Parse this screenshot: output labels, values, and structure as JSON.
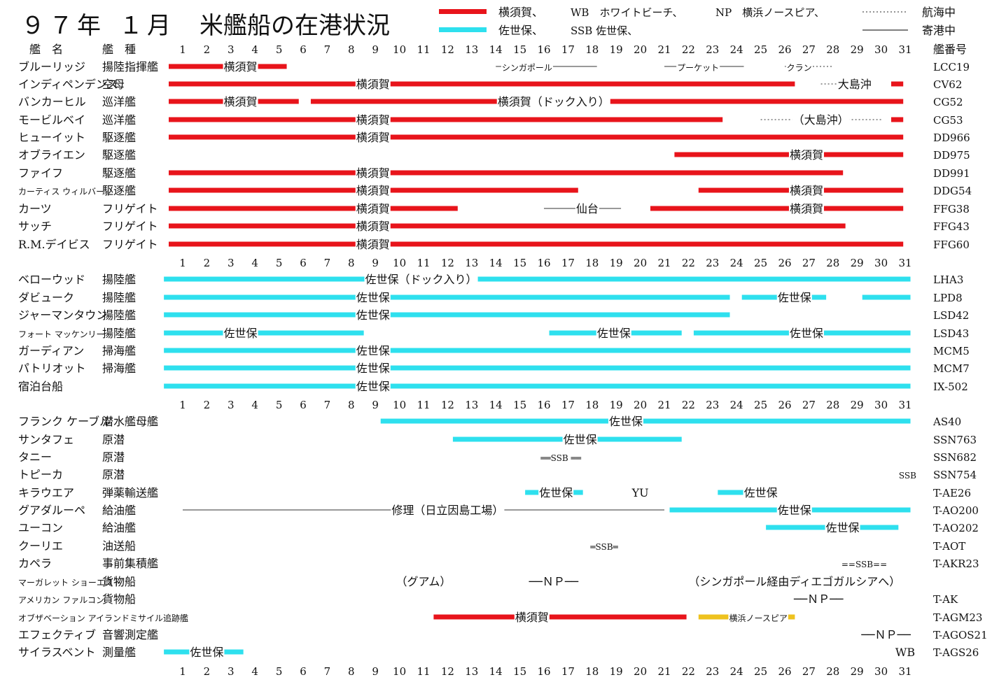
{
  "title": {
    "year": "９７年",
    "month": "１月",
    "main": "米艦船の在港状況"
  },
  "legend": {
    "red_label": "横須賀、",
    "cyan_label": "佐世保、",
    "wb": "WB　ホワイトビーチ、",
    "ssb": "SSB 佐世保、",
    "np": "NP　横浜ノースピア、",
    "dotted_label": "航海中",
    "solid_label": "寄港中"
  },
  "colors": {
    "yokosuka": "#e8141b",
    "sasebo": "#2ee0ee",
    "north_pier": "#eec21e",
    "line": "#333333"
  },
  "header": {
    "name_col": "艦　名",
    "type_col": "艦　種",
    "hull_col": "艦番号"
  },
  "days": [
    "1",
    "2",
    "3",
    "4",
    "5",
    "6",
    "7",
    "8",
    "9",
    "10",
    "11",
    "12",
    "13",
    "14",
    "15",
    "16",
    "17",
    "18",
    "19",
    "20",
    "21",
    "22",
    "23",
    "24",
    "25",
    "26",
    "27",
    "28",
    "29",
    "30",
    "31"
  ],
  "rows": [
    {
      "name": "ブルーリッジ",
      "type": "揚陸指揮艦",
      "hull": "LCC19",
      "bars": [
        {
          "c": "yokosuka",
          "from": 1,
          "to": 5.9
        }
      ],
      "lines": [
        {
          "from": 14,
          "to": 18.2,
          "style": "solid"
        },
        {
          "from": 21,
          "to": 24.3,
          "style": "solid"
        },
        {
          "from": 26,
          "to": 28,
          "style": "dotted"
        }
      ],
      "labels": [
        {
          "text": "横須賀",
          "x": 3.4
        },
        {
          "text": "シンガポール",
          "x": 15.3,
          "small": true
        },
        {
          "text": "プーケット",
          "x": 22.4,
          "small": true
        },
        {
          "text": "クラン",
          "x": 26.6,
          "small": true
        }
      ]
    },
    {
      "name": "インディペンデンス",
      "type": "空母",
      "hull": "CV62",
      "bars": [
        {
          "c": "yokosuka",
          "from": 1,
          "to": 27
        },
        {
          "c": "yokosuka",
          "from": 31,
          "to": 31.5
        }
      ],
      "lines": [
        {
          "from": 27.5,
          "to": 29.5,
          "style": "dotted"
        }
      ],
      "labels": [
        {
          "text": "横須賀",
          "x": 8.9
        },
        {
          "text": "大島沖",
          "x": 28.9
        }
      ]
    },
    {
      "name": "バンカーヒル",
      "type": "巡洋艦",
      "hull": "CG52",
      "bars": [
        {
          "c": "yokosuka",
          "from": 1,
          "to": 6.4
        },
        {
          "c": "yokosuka",
          "from": 6.9,
          "to": 31.5
        }
      ],
      "lines": [],
      "labels": [
        {
          "text": "横須賀",
          "x": 3.4
        },
        {
          "text": "横須賀（ドック入り）",
          "x": 16.4
        }
      ]
    },
    {
      "name": "モービルベイ",
      "type": "巡洋艦",
      "hull": "CG53",
      "bars": [
        {
          "c": "yokosuka",
          "from": 1,
          "to": 24
        },
        {
          "c": "yokosuka",
          "from": 31,
          "to": 31.5
        }
      ],
      "lines": [
        {
          "from": 25,
          "to": 30,
          "style": "dotted"
        }
      ],
      "labels": [
        {
          "text": "横須賀",
          "x": 8.9
        },
        {
          "text": "（大島沖）",
          "x": 27.5
        }
      ]
    },
    {
      "name": "ヒューイット",
      "type": "駆逐艦",
      "hull": "DD966",
      "bars": [
        {
          "c": "yokosuka",
          "from": 1,
          "to": 31.5
        }
      ],
      "lines": [],
      "labels": [
        {
          "text": "横須賀",
          "x": 8.9
        }
      ]
    },
    {
      "name": "オブライエン",
      "type": "駆逐艦",
      "hull": "DD975",
      "bars": [
        {
          "c": "yokosuka",
          "from": 22,
          "to": 31.5
        }
      ],
      "lines": [],
      "labels": [
        {
          "text": "横須賀",
          "x": 26.9
        }
      ]
    },
    {
      "name": "ファイフ",
      "type": "駆逐艦",
      "hull": "DD991",
      "bars": [
        {
          "c": "yokosuka",
          "from": 1,
          "to": 29
        }
      ],
      "lines": [],
      "labels": [
        {
          "text": "横須賀",
          "x": 8.9
        }
      ]
    },
    {
      "name": "カーティス ウィルバー",
      "type": "駆逐艦",
      "hull": "DDG54",
      "bars": [
        {
          "c": "yokosuka",
          "from": 1,
          "to": 18
        },
        {
          "c": "yokosuka",
          "from": 23,
          "to": 31.5
        }
      ],
      "lines": [],
      "labels": [
        {
          "text": "横須賀",
          "x": 8.9
        },
        {
          "text": "横須賀",
          "x": 26.9
        }
      ]
    },
    {
      "name": "カーツ",
      "type": "フリゲイト",
      "hull": "FFG38",
      "bars": [
        {
          "c": "yokosuka",
          "from": 1,
          "to": 13
        },
        {
          "c": "yokosuka",
          "from": 21,
          "to": 31.5
        }
      ],
      "lines": [
        {
          "from": 16,
          "to": 19.2,
          "style": "solid"
        }
      ],
      "labels": [
        {
          "text": "横須賀",
          "x": 8.9
        },
        {
          "text": "仙台",
          "x": 17.8
        },
        {
          "text": "横須賀",
          "x": 26.9
        }
      ]
    },
    {
      "name": "サッチ",
      "type": "フリゲイト",
      "hull": "FFG43",
      "bars": [
        {
          "c": "yokosuka",
          "from": 1,
          "to": 29.1
        }
      ],
      "lines": [],
      "labels": [
        {
          "text": "横須賀",
          "x": 8.9
        }
      ]
    },
    {
      "name": "R.M.デイビス",
      "type": "フリゲイト",
      "hull": "FFG60",
      "bars": [
        {
          "c": "yokosuka",
          "from": 1,
          "to": 31.5
        }
      ],
      "lines": [],
      "labels": [
        {
          "text": "横須賀",
          "x": 8.9
        }
      ]
    },
    {
      "name": "ベローウッド",
      "type": "揚陸艦",
      "hull": "LHA3",
      "bars": [
        {
          "c": "sasebo",
          "from": 0.8,
          "to": 31.8
        }
      ],
      "lines": [],
      "labels": [
        {
          "text": "佐世保（ドック入り）",
          "x": 10.9
        }
      ]
    },
    {
      "name": "ダビューク",
      "type": "揚陸艦",
      "hull": "LPD8",
      "bars": [
        {
          "c": "sasebo",
          "from": 0.8,
          "to": 24.3
        },
        {
          "c": "sasebo",
          "from": 24.8,
          "to": 28.3
        },
        {
          "c": "sasebo",
          "from": 29.8,
          "to": 31.8
        }
      ],
      "lines": [],
      "labels": [
        {
          "text": "佐世保",
          "x": 8.9
        },
        {
          "text": "佐世保",
          "x": 26.4
        }
      ]
    },
    {
      "name": "ジャーマンタウン",
      "type": "揚陸艦",
      "hull": "LSD42",
      "bars": [
        {
          "c": "sasebo",
          "from": 0.8,
          "to": 24.3
        }
      ],
      "lines": [],
      "labels": [
        {
          "text": "佐世保",
          "x": 8.9
        }
      ]
    },
    {
      "name": "フォート マッケンリー",
      "type": "揚陸艦",
      "hull": "LSD43",
      "bars": [
        {
          "c": "sasebo",
          "from": 0.8,
          "to": 9.1
        },
        {
          "c": "sasebo",
          "from": 16.8,
          "to": 22.3
        },
        {
          "c": "sasebo",
          "from": 22.8,
          "to": 31.8
        }
      ],
      "lines": [],
      "labels": [
        {
          "text": "佐世保",
          "x": 3.4
        },
        {
          "text": "佐世保",
          "x": 18.9
        },
        {
          "text": "佐世保",
          "x": 26.9
        }
      ]
    },
    {
      "name": "ガーディアン",
      "type": "掃海艦",
      "hull": "MCM5",
      "bars": [
        {
          "c": "sasebo",
          "from": 0.8,
          "to": 31.8
        }
      ],
      "lines": [],
      "labels": [
        {
          "text": "佐世保",
          "x": 8.9
        }
      ]
    },
    {
      "name": "パトリオット",
      "type": "掃海艦",
      "hull": "MCM7",
      "bars": [
        {
          "c": "sasebo",
          "from": 0.8,
          "to": 31.8
        }
      ],
      "lines": [],
      "labels": [
        {
          "text": "佐世保",
          "x": 8.9
        }
      ]
    },
    {
      "name": "宿泊台船",
      "type": "",
      "hull": "IX-502",
      "bars": [
        {
          "c": "sasebo",
          "from": 0.8,
          "to": 31.8
        }
      ],
      "lines": [],
      "labels": [
        {
          "text": "佐世保",
          "x": 8.9
        }
      ]
    },
    {
      "name": "フランク ケーブル",
      "type": "潜水艦母艦",
      "hull": "AS40",
      "bars": [
        {
          "c": "sasebo",
          "from": 9.8,
          "to": 31.8
        }
      ],
      "lines": [],
      "labels": [
        {
          "text": "佐世保",
          "x": 19.4
        }
      ]
    },
    {
      "name": "サンタフェ",
      "type": "原潜",
      "hull": "SSN763",
      "bars": [
        {
          "c": "sasebo",
          "from": 12.8,
          "to": 22.3
        }
      ],
      "lines": [],
      "labels": [
        {
          "text": "佐世保",
          "x": 17.5
        }
      ]
    },
    {
      "name": "タニー",
      "type": "原潜",
      "hull": "SSN682",
      "bars": [],
      "lines": [],
      "labels": [
        {
          "text": "══SSB ══",
          "x": 16.7,
          "small": true
        }
      ]
    },
    {
      "name": "トピーカ",
      "type": "原潜",
      "hull": "SSN754",
      "bars": [],
      "lines": [],
      "labels": [
        {
          "text": "SSB",
          "x": 31.1,
          "small": true
        }
      ]
    },
    {
      "name": "キラウエア",
      "type": "弾薬輸送艦",
      "hull": "T-AE26",
      "bars": [
        {
          "c": "sasebo",
          "from": 15.8,
          "to": 18.2
        },
        {
          "c": "sasebo",
          "from": 23.8,
          "to": 26.2
        }
      ],
      "lines": [],
      "labels": [
        {
          "text": "佐世保",
          "x": 16.5
        },
        {
          "text": "YU",
          "x": 20
        },
        {
          "text": "佐世保",
          "x": 25
        }
      ]
    },
    {
      "name": "グアダルーペ",
      "type": "給油艦",
      "hull": "T-AO200",
      "bars": [
        {
          "c": "sasebo",
          "from": 21.8,
          "to": 31.8
        }
      ],
      "lines": [
        {
          "from": 1,
          "to": 21,
          "style": "solid"
        }
      ],
      "labels": [
        {
          "text": "修理（日立因島工場）",
          "x": 12
        },
        {
          "text": "佐世保",
          "x": 26.4
        }
      ]
    },
    {
      "name": "ユーコン",
      "type": "給油艦",
      "hull": "T-AO202",
      "bars": [
        {
          "c": "sasebo",
          "from": 25.8,
          "to": 31.3
        }
      ],
      "lines": [],
      "labels": [
        {
          "text": "佐世保",
          "x": 28.4
        }
      ]
    },
    {
      "name": "クーリエ",
      "type": "油送船",
      "hull": "T-AOT",
      "bars": [],
      "lines": [],
      "labels": [
        {
          "text": "═SSB═",
          "x": 18.5,
          "small": true
        }
      ]
    },
    {
      "name": "カペラ",
      "type": "事前集積艦",
      "hull": "T-AKR23",
      "bars": [],
      "lines": [],
      "labels": [
        {
          "text": "==SSB==",
          "x": 29.3,
          "small": true
        }
      ]
    },
    {
      "name": "マーガレット ショーエスト",
      "type": "貨物船",
      "hull": "",
      "bars": [],
      "lines": [],
      "labels": [
        {
          "text": "（グアム）",
          "x": 11
        },
        {
          "text": "──ＮＰ──",
          "x": 16.4
        },
        {
          "text": "（シンガポール経由ディエゴガルシアへ）",
          "x": 26.4
        }
      ]
    },
    {
      "name": "アメリカン ファルコン",
      "type": "貨物船",
      "hull": "T-AK",
      "bars": [],
      "lines": [],
      "labels": [
        {
          "text": "──ＮＰ──",
          "x": 27.4
        }
      ]
    },
    {
      "name": "オブザベーション アイランドミサイル追跡艦",
      "type": "",
      "hull": "T-AGM23",
      "bars": [
        {
          "c": "yokosuka",
          "from": 12,
          "to": 22.5
        },
        {
          "c": "north_pier",
          "from": 23,
          "to": 27
        }
      ],
      "lines": [],
      "labels": [
        {
          "text": "横須賀",
          "x": 15.5
        },
        {
          "text": "横浜ノースピア",
          "x": 24.9,
          "small": true
        }
      ]
    },
    {
      "name": "エフェクティブ",
      "type": "音響測定艦",
      "hull": "T-AGOS21",
      "bars": [],
      "lines": [],
      "labels": [
        {
          "text": "──ＮＰ──",
          "x": 30.2
        }
      ]
    },
    {
      "name": "サイラスベント",
      "type": "測量艦",
      "hull": "T-AGS26",
      "bars": [
        {
          "c": "sasebo",
          "from": 0.8,
          "to": 4.1
        }
      ],
      "lines": [],
      "labels": [
        {
          "text": "佐世保",
          "x": 2
        },
        {
          "text": "WB",
          "x": 31
        }
      ]
    }
  ]
}
